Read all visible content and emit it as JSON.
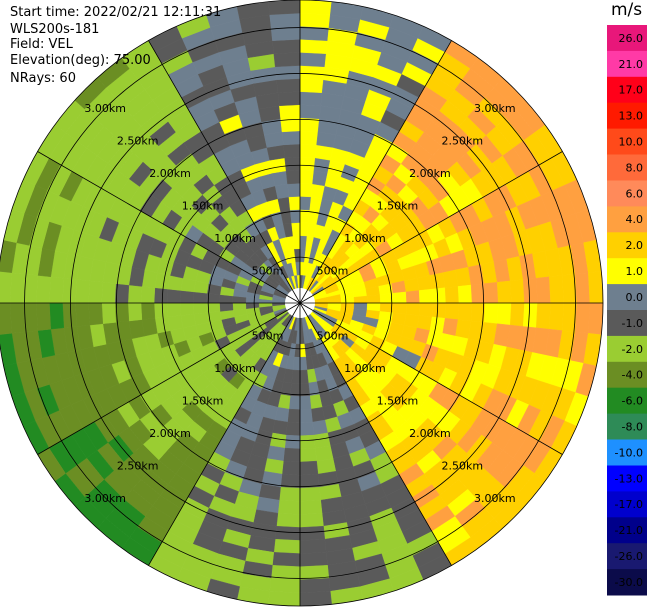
{
  "header": {
    "start_time": "Start time: 2022/02/21 12:11:31",
    "instrument": "WLS200s-181",
    "field": "Field: VEL",
    "elevation": "Elevation(deg): 75.00",
    "nrays": "NRays: 60"
  },
  "colorbar": {
    "unit": "m/s",
    "labels": [
      "26.0",
      "21.0",
      "17.0",
      "13.0",
      "10.0",
      "8.0",
      "6.0",
      "4.0",
      "2.0",
      "1.0",
      "0.0",
      "-1.0",
      "-2.0",
      "-4.0",
      "-6.0",
      "-8.0",
      "-10.0",
      "-13.0",
      "-17.0",
      "-21.0",
      "-26.0",
      "-30.0"
    ],
    "colors": [
      "#e8177a",
      "#ff3aa6",
      "#ff0019",
      "#ff1a00",
      "#ff4a1a",
      "#ff6a3a",
      "#ff8a5a",
      "#ffa040",
      "#ffd000",
      "#ffff00",
      "#6e7f8f",
      "#5a5a5a",
      "#9acd32",
      "#6b8e23",
      "#228b22",
      "#2e8b57",
      "#1e90ff",
      "#0000ff",
      "#0000cd",
      "#00008b",
      "#191970",
      "#0b0b4a"
    ]
  },
  "chart_data": {
    "type": "ppi",
    "title": "",
    "field": "VEL",
    "nrays": 60,
    "elevation_deg": 75.0,
    "range_rings": [
      "500m",
      "1.00km",
      "1.50km",
      "2.00km",
      "2.50km",
      "3.00km"
    ],
    "range_rings_km": [
      0.5,
      1.0,
      1.5,
      2.0,
      2.5,
      3.0
    ],
    "max_range_km": 3.3,
    "sector_mean_velocity": [
      {
        "azimuth_range": "0-30",
        "velocity_ms": 0.0
      },
      {
        "azimuth_range": "30-90",
        "velocity_ms": 2.0
      },
      {
        "azimuth_range": "90-150",
        "velocity_ms": 1.5
      },
      {
        "azimuth_range": "150-210",
        "velocity_ms": -2.0
      },
      {
        "azimuth_range": "210-270",
        "velocity_ms": -5.0
      },
      {
        "azimuth_range": "270-330",
        "velocity_ms": -3.0
      },
      {
        "azimuth_range": "330-360",
        "velocity_ms": -1.0
      }
    ]
  }
}
